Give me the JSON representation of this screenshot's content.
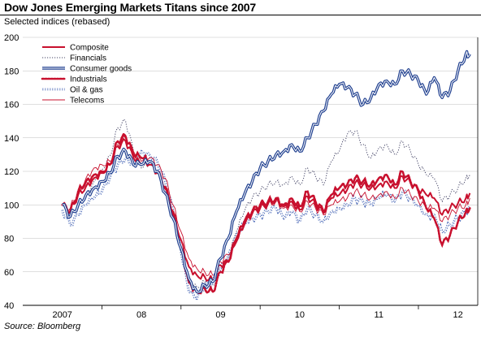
{
  "title": "Dow Jones Emerging Markets Titans since 2007",
  "subtitle": "Selected indices (rebased)",
  "source": "Source: Bloomberg",
  "chart_data": {
    "type": "line",
    "title": "Dow Jones Emerging Markets Titans since 2007",
    "subtitle": "Selected indices (rebased)",
    "ylim": [
      40,
      200
    ],
    "yticks": [
      40,
      60,
      80,
      100,
      120,
      140,
      160,
      180,
      200
    ],
    "xlim": [
      2007.0,
      2012.2
    ],
    "xtick_labels": [
      "2007",
      "08",
      "09",
      "10",
      "11",
      "12"
    ],
    "xtick_positions": [
      2007.0,
      2008.0,
      2009.0,
      2010.0,
      2011.0,
      2012.0
    ],
    "grid": true,
    "legend_position": "top-left",
    "series": [
      {
        "name": "Composite",
        "color": "#c8102e",
        "style": "solid",
        "x": [
          2007.0,
          2007.1,
          2007.2,
          2007.3,
          2007.4,
          2007.5,
          2007.6,
          2007.7,
          2007.8,
          2007.9,
          2008.0,
          2008.1,
          2008.2,
          2008.3,
          2008.4,
          2008.5,
          2008.6,
          2008.7,
          2008.8,
          2008.9,
          2009.0,
          2009.1,
          2009.2,
          2009.3,
          2009.4,
          2009.5,
          2009.6,
          2009.7,
          2009.8,
          2009.9,
          2010.0,
          2010.1,
          2010.2,
          2010.3,
          2010.4,
          2010.5,
          2010.6,
          2010.7,
          2010.8,
          2010.9,
          2011.0,
          2011.1,
          2011.2,
          2011.3,
          2011.4,
          2011.5,
          2011.6,
          2011.7,
          2011.8,
          2011.9,
          2012.0,
          2012.1,
          2012.15
        ],
        "values": [
          100,
          96,
          106,
          111,
          116,
          119,
          124,
          135,
          138,
          128,
          124,
          124,
          119,
          111,
          96,
          79,
          63,
          58,
          57,
          55,
          64,
          66,
          78,
          88,
          95,
          98,
          101,
          103,
          99,
          102,
          97,
          105,
          100,
          95,
          104,
          106,
          109,
          113,
          112,
          110,
          112,
          114,
          110,
          117,
          113,
          109,
          106,
          104,
          94,
          98,
          101,
          104,
          107
        ]
      },
      {
        "name": "Financials",
        "color": "#444466",
        "style": "dotted",
        "x": [
          2007.0,
          2007.1,
          2007.2,
          2007.3,
          2007.4,
          2007.5,
          2007.6,
          2007.7,
          2007.8,
          2007.9,
          2008.0,
          2008.1,
          2008.2,
          2008.3,
          2008.4,
          2008.5,
          2008.6,
          2008.7,
          2008.8,
          2008.9,
          2009.0,
          2009.1,
          2009.2,
          2009.3,
          2009.4,
          2009.5,
          2009.6,
          2009.7,
          2009.8,
          2009.9,
          2010.0,
          2010.1,
          2010.2,
          2010.3,
          2010.4,
          2010.5,
          2010.6,
          2010.7,
          2010.8,
          2010.9,
          2011.0,
          2011.1,
          2011.2,
          2011.3,
          2011.4,
          2011.5,
          2011.6,
          2011.7,
          2011.8,
          2011.9,
          2012.0,
          2012.1,
          2012.15
        ],
        "values": [
          100,
          92,
          100,
          106,
          114,
          121,
          129,
          146,
          150,
          132,
          122,
          124,
          119,
          108,
          92,
          72,
          56,
          51,
          54,
          52,
          62,
          68,
          84,
          96,
          104,
          108,
          112,
          114,
          112,
          117,
          112,
          122,
          117,
          112,
          126,
          132,
          142,
          144,
          136,
          128,
          134,
          136,
          130,
          138,
          132,
          124,
          118,
          116,
          102,
          106,
          110,
          116,
          118
        ]
      },
      {
        "name": "Consumer goods",
        "color": "#1f3f8f",
        "style": "double",
        "x": [
          2007.0,
          2007.1,
          2007.2,
          2007.3,
          2007.4,
          2007.5,
          2007.6,
          2007.7,
          2007.8,
          2007.9,
          2008.0,
          2008.1,
          2008.2,
          2008.3,
          2008.4,
          2008.5,
          2008.6,
          2008.7,
          2008.8,
          2008.9,
          2009.0,
          2009.1,
          2009.2,
          2009.3,
          2009.4,
          2009.5,
          2009.6,
          2009.7,
          2009.8,
          2009.9,
          2010.0,
          2010.1,
          2010.2,
          2010.3,
          2010.4,
          2010.5,
          2010.6,
          2010.7,
          2010.8,
          2010.9,
          2011.0,
          2011.1,
          2011.2,
          2011.3,
          2011.4,
          2011.5,
          2011.6,
          2011.7,
          2011.8,
          2011.9,
          2012.0,
          2012.1,
          2012.15
        ],
        "values": [
          100,
          93,
          100,
          106,
          110,
          114,
          119,
          129,
          132,
          124,
          124,
          126,
          120,
          107,
          92,
          74,
          56,
          48,
          52,
          54,
          68,
          80,
          96,
          106,
          114,
          122,
          126,
          130,
          132,
          136,
          132,
          140,
          148,
          156,
          166,
          172,
          170,
          166,
          160,
          164,
          172,
          174,
          172,
          180,
          178,
          174,
          166,
          176,
          164,
          168,
          180,
          190,
          190
        ]
      },
      {
        "name": "Industrials",
        "color": "#c8102e",
        "style": "heavy-dotted",
        "x": [
          2007.0,
          2007.1,
          2007.2,
          2007.3,
          2007.4,
          2007.5,
          2007.6,
          2007.7,
          2007.8,
          2007.9,
          2008.0,
          2008.1,
          2008.2,
          2008.3,
          2008.4,
          2008.5,
          2008.6,
          2008.7,
          2008.8,
          2008.9,
          2009.0,
          2009.1,
          2009.2,
          2009.3,
          2009.4,
          2009.5,
          2009.6,
          2009.7,
          2009.8,
          2009.9,
          2010.0,
          2010.1,
          2010.2,
          2010.3,
          2010.4,
          2010.5,
          2010.6,
          2010.7,
          2010.8,
          2010.9,
          2011.0,
          2011.1,
          2011.2,
          2011.3,
          2011.4,
          2011.5,
          2011.6,
          2011.7,
          2011.8,
          2011.9,
          2012.0,
          2012.1,
          2012.15
        ],
        "values": [
          100,
          96,
          108,
          114,
          118,
          120,
          124,
          138,
          141,
          130,
          128,
          126,
          120,
          110,
          94,
          74,
          54,
          48,
          50,
          48,
          60,
          66,
          80,
          90,
          96,
          100,
          102,
          104,
          100,
          104,
          99,
          108,
          102,
          96,
          106,
          110,
          112,
          116,
          114,
          112,
          116,
          118,
          112,
          120,
          114,
          108,
          98,
          92,
          76,
          82,
          90,
          96,
          98
        ]
      },
      {
        "name": "Oil & gas",
        "color": "#3a5bb0",
        "style": "open-dotted",
        "x": [
          2007.0,
          2007.1,
          2007.2,
          2007.3,
          2007.4,
          2007.5,
          2007.6,
          2007.7,
          2007.8,
          2007.9,
          2008.0,
          2008.1,
          2008.2,
          2008.3,
          2008.4,
          2008.5,
          2008.6,
          2008.7,
          2008.8,
          2008.9,
          2009.0,
          2009.1,
          2009.2,
          2009.3,
          2009.4,
          2009.5,
          2009.6,
          2009.7,
          2009.8,
          2009.9,
          2010.0,
          2010.1,
          2010.2,
          2010.3,
          2010.4,
          2010.5,
          2010.6,
          2010.7,
          2010.8,
          2010.9,
          2011.0,
          2011.1,
          2011.2,
          2011.3,
          2011.4,
          2011.5,
          2011.6,
          2011.7,
          2011.8,
          2011.9,
          2012.0,
          2012.1,
          2012.15
        ],
        "values": [
          97,
          88,
          94,
          100,
          104,
          108,
          116,
          124,
          128,
          124,
          132,
          130,
          126,
          114,
          96,
          72,
          48,
          44,
          52,
          54,
          62,
          70,
          82,
          90,
          92,
          94,
          96,
          98,
          92,
          96,
          90,
          98,
          94,
          90,
          96,
          98,
          100,
          104,
          102,
          100,
          104,
          106,
          102,
          108,
          104,
          100,
          94,
          94,
          84,
          88,
          92,
          96,
          98
        ]
      },
      {
        "name": "Telecoms",
        "color": "#c8102e",
        "style": "thin",
        "x": [
          2007.0,
          2007.1,
          2007.2,
          2007.3,
          2007.4,
          2007.5,
          2007.6,
          2007.7,
          2007.8,
          2007.9,
          2008.0,
          2008.1,
          2008.2,
          2008.3,
          2008.4,
          2008.5,
          2008.6,
          2008.7,
          2008.8,
          2008.9,
          2009.0,
          2009.1,
          2009.2,
          2009.3,
          2009.4,
          2009.5,
          2009.6,
          2009.7,
          2009.8,
          2009.9,
          2010.0,
          2010.1,
          2010.2,
          2010.3,
          2010.4,
          2010.5,
          2010.6,
          2010.7,
          2010.8,
          2010.9,
          2011.0,
          2011.1,
          2011.2,
          2011.3,
          2011.4,
          2011.5,
          2011.6,
          2011.7,
          2011.8,
          2011.9,
          2012.0,
          2012.1,
          2012.15
        ],
        "values": [
          100,
          98,
          108,
          116,
          122,
          124,
          126,
          136,
          140,
          132,
          126,
          128,
          124,
          116,
          100,
          84,
          68,
          62,
          60,
          58,
          66,
          70,
          80,
          88,
          94,
          98,
          100,
          102,
          98,
          100,
          96,
          102,
          98,
          94,
          100,
          102,
          104,
          108,
          106,
          104,
          106,
          108,
          104,
          110,
          106,
          102,
          98,
          98,
          90,
          94,
          98,
          100,
          104
        ]
      }
    ]
  }
}
